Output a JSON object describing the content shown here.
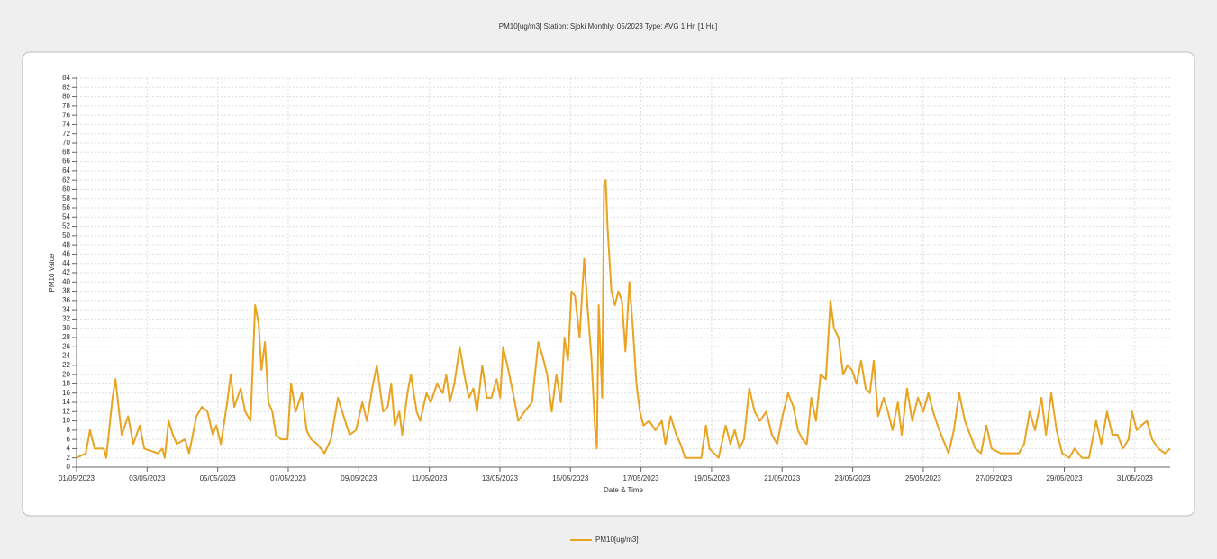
{
  "chart_data": {
    "type": "line",
    "title": "PM10[ug/m3] Station: Sjoki  Monthly: 05/2023  Type: AVG 1 Hr. [1 Hr.]",
    "x_label": "Date & Time",
    "y_label": "PM10 Value",
    "x": [
      1.0,
      1.26,
      1.38,
      1.51,
      1.77,
      1.84,
      2.02,
      2.1,
      2.28,
      2.46,
      2.61,
      2.79,
      2.92,
      3.3,
      3.43,
      3.5,
      3.61,
      3.73,
      3.84,
      4.07,
      4.19,
      4.4,
      4.55,
      4.71,
      4.86,
      4.96,
      5.09,
      5.27,
      5.37,
      5.47,
      5.65,
      5.78,
      5.93,
      6.06,
      6.16,
      6.24,
      6.34,
      6.44,
      6.55,
      6.65,
      6.8,
      6.98,
      7.08,
      7.21,
      7.39,
      7.52,
      7.65,
      7.82,
      8.03,
      8.21,
      8.41,
      8.57,
      8.74,
      8.92,
      9.1,
      9.23,
      9.38,
      9.51,
      9.69,
      9.82,
      9.92,
      10.02,
      10.15,
      10.23,
      10.38,
      10.48,
      10.64,
      10.74,
      10.92,
      11.04,
      11.22,
      11.38,
      11.48,
      11.58,
      11.71,
      11.86,
      11.99,
      12.12,
      12.25,
      12.35,
      12.5,
      12.63,
      12.76,
      12.91,
      13.01,
      13.09,
      13.24,
      13.4,
      13.52,
      13.7,
      13.91,
      14.09,
      14.21,
      14.34,
      14.47,
      14.6,
      14.73,
      14.83,
      14.93,
      15.03,
      15.13,
      15.26,
      15.39,
      15.49,
      15.59,
      15.7,
      15.75,
      15.8,
      15.9,
      15.95,
      16.0,
      16.05,
      16.16,
      16.26,
      16.36,
      16.46,
      16.56,
      16.67,
      16.77,
      16.87,
      16.97,
      17.07,
      17.23,
      17.41,
      17.59,
      17.69,
      17.84,
      18.0,
      18.12,
      18.25,
      18.51,
      18.71,
      18.84,
      18.94,
      19.07,
      19.2,
      19.4,
      19.53,
      19.66,
      19.79,
      19.92,
      20.07,
      20.22,
      20.37,
      20.55,
      20.71,
      20.86,
      21.01,
      21.17,
      21.32,
      21.45,
      21.58,
      21.7,
      21.83,
      21.96,
      22.09,
      22.24,
      22.37,
      22.47,
      22.6,
      22.73,
      22.85,
      22.98,
      23.11,
      23.24,
      23.37,
      23.49,
      23.6,
      23.72,
      23.88,
      24.0,
      24.13,
      24.28,
      24.39,
      24.54,
      24.69,
      24.85,
      25.0,
      25.15,
      25.28,
      25.41,
      25.56,
      25.72,
      25.87,
      26.02,
      26.18,
      26.33,
      26.48,
      26.64,
      26.79,
      26.94,
      27.2,
      27.45,
      27.71,
      27.86,
      28.02,
      28.17,
      28.35,
      28.48,
      28.63,
      28.78,
      28.94,
      29.14,
      29.29,
      29.5,
      29.7,
      29.9,
      30.05,
      30.21,
      30.36,
      30.51,
      30.66,
      30.82,
      30.92,
      31.05,
      31.18,
      31.34,
      31.49,
      31.67,
      31.85,
      32.0
    ],
    "series": [
      {
        "name": "PM10[ug/m3]",
        "color": "#e9a320",
        "values": [
          2,
          3,
          8,
          4,
          4,
          2,
          15,
          19,
          7,
          11,
          5,
          9,
          4,
          3,
          4,
          2,
          10,
          7,
          5,
          6,
          3,
          11,
          13,
          12,
          7,
          9,
          5,
          14,
          20,
          13,
          17,
          12,
          10,
          35,
          31,
          21,
          27,
          14,
          12,
          7,
          6,
          6,
          18,
          12,
          16,
          8,
          6,
          5,
          3,
          6,
          15,
          11,
          7,
          8,
          14,
          10,
          17,
          22,
          12,
          13,
          18,
          9,
          12,
          7,
          16,
          20,
          12,
          10,
          16,
          14,
          18,
          16,
          20,
          14,
          18,
          26,
          20,
          15,
          17,
          12,
          22,
          15,
          15,
          19,
          15,
          26,
          21,
          15,
          10,
          12,
          14,
          27,
          24,
          20,
          12,
          20,
          14,
          28,
          23,
          38,
          37,
          28,
          45,
          34,
          24,
          8,
          4,
          35,
          15,
          61,
          62,
          52,
          38,
          35,
          38,
          36,
          25,
          40,
          30,
          18,
          12,
          9,
          10,
          8,
          10,
          5,
          11,
          7,
          5,
          2,
          2,
          2,
          9,
          4,
          3,
          2,
          9,
          5,
          8,
          4,
          6,
          17,
          12,
          10,
          12,
          7,
          5,
          11,
          16,
          13,
          8,
          6,
          5,
          15,
          10,
          20,
          19,
          36,
          30,
          28,
          20,
          22,
          21,
          18,
          23,
          17,
          16,
          23,
          11,
          15,
          12,
          8,
          14,
          7,
          17,
          10,
          15,
          12,
          16,
          12,
          9,
          6,
          3,
          8,
          16,
          10,
          7,
          4,
          3,
          9,
          4,
          3,
          3,
          3,
          5,
          12,
          8,
          15,
          7,
          16,
          8,
          3,
          2,
          4,
          2,
          2,
          10,
          5,
          12,
          7,
          7,
          4,
          6,
          12,
          8,
          9,
          10,
          6,
          4,
          3,
          4
        ]
      }
    ],
    "xlim": [
      1,
      32
    ],
    "ylim": [
      0,
      84
    ],
    "xticks": [
      {
        "value": 1,
        "label": "01/05/2023"
      },
      {
        "value": 3,
        "label": "03/05/2023"
      },
      {
        "value": 5,
        "label": "05/05/2023"
      },
      {
        "value": 7,
        "label": "07/05/2023"
      },
      {
        "value": 9,
        "label": "09/05/2023"
      },
      {
        "value": 11,
        "label": "11/05/2023"
      },
      {
        "value": 13,
        "label": "13/05/2023"
      },
      {
        "value": 15,
        "label": "15/05/2023"
      },
      {
        "value": 17,
        "label": "17/05/2023"
      },
      {
        "value": 19,
        "label": "19/05/2023"
      },
      {
        "value": 21,
        "label": "21/05/2023"
      },
      {
        "value": 23,
        "label": "23/05/2023"
      },
      {
        "value": 25,
        "label": "25/05/2023"
      },
      {
        "value": 27,
        "label": "27/05/2023"
      },
      {
        "value": 29,
        "label": "29/05/2023"
      },
      {
        "value": 31,
        "label": "31/05/2023"
      }
    ],
    "yticks": [
      0,
      2,
      4,
      6,
      8,
      10,
      12,
      14,
      16,
      18,
      20,
      22,
      24,
      26,
      28,
      30,
      32,
      34,
      36,
      38,
      40,
      42,
      44,
      46,
      48,
      50,
      52,
      54,
      56,
      58,
      60,
      62,
      64,
      66,
      68,
      70,
      72,
      74,
      76,
      78,
      80,
      82,
      84
    ],
    "grid": true
  }
}
